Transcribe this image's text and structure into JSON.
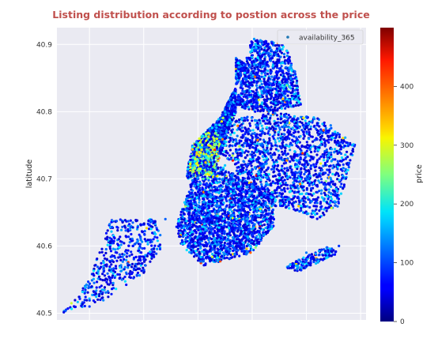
{
  "chart_data": {
    "type": "scatter",
    "title": "Listing distribution according to postion across the price",
    "xlabel": "",
    "ylabel": "latitude",
    "ylim": [
      40.49,
      40.925
    ],
    "yticks": [
      "40.5",
      "40.6",
      "40.7",
      "40.8",
      "40.9"
    ],
    "legend": {
      "label": "availability_365",
      "placement": "top-right"
    },
    "grid": true,
    "colorbar": {
      "label": "price",
      "range": [
        0,
        500
      ],
      "ticks": [
        "0",
        "100",
        "200",
        "300",
        "400"
      ],
      "colormap": "jet"
    },
    "series": [
      {
        "name": "availability_365",
        "description_points_lon_lat_price": [
          [
            -74.2,
            40.51,
            90
          ],
          [
            -74.18,
            40.52,
            60
          ],
          [
            -74.14,
            40.55,
            120
          ],
          [
            -74.1,
            40.58,
            80
          ],
          [
            -74.08,
            40.62,
            150
          ],
          [
            -74.12,
            40.6,
            70
          ],
          [
            -74.06,
            40.64,
            110
          ],
          [
            -74.02,
            40.63,
            90
          ],
          [
            -74.0,
            40.66,
            130
          ],
          [
            -73.98,
            40.68,
            140
          ],
          [
            -73.96,
            40.7,
            100
          ],
          [
            -73.95,
            40.72,
            160
          ],
          [
            -73.99,
            40.73,
            250
          ],
          [
            -73.98,
            40.75,
            300
          ],
          [
            -73.97,
            40.76,
            280
          ],
          [
            -73.96,
            40.78,
            200
          ],
          [
            -73.95,
            40.8,
            150
          ],
          [
            -73.94,
            40.82,
            110
          ],
          [
            -73.93,
            40.85,
            90
          ],
          [
            -73.91,
            40.88,
            80
          ],
          [
            -73.9,
            40.9,
            70
          ],
          [
            -73.88,
            40.86,
            60
          ],
          [
            -73.86,
            40.84,
            70
          ],
          [
            -73.84,
            40.83,
            65
          ],
          [
            -73.9,
            40.74,
            90
          ],
          [
            -73.88,
            40.75,
            100
          ],
          [
            -73.85,
            40.73,
            80
          ],
          [
            -73.82,
            40.71,
            90
          ],
          [
            -73.8,
            40.7,
            110
          ],
          [
            -73.78,
            40.68,
            85
          ],
          [
            -73.76,
            40.67,
            75
          ],
          [
            -73.75,
            40.72,
            95
          ],
          [
            -73.92,
            40.66,
            105
          ],
          [
            -73.9,
            40.64,
            95
          ],
          [
            -73.88,
            40.62,
            80
          ],
          [
            -73.94,
            40.6,
            90
          ],
          [
            -73.96,
            40.58,
            100
          ],
          [
            -73.8,
            40.59,
            120
          ],
          [
            -73.78,
            40.58,
            90
          ],
          [
            -73.74,
            40.6,
            85
          ],
          [
            -74.0,
            40.72,
            320
          ],
          [
            -74.01,
            40.71,
            260
          ],
          [
            -73.99,
            40.7,
            230
          ],
          [
            -73.97,
            40.74,
            270
          ]
        ]
      }
    ]
  }
}
